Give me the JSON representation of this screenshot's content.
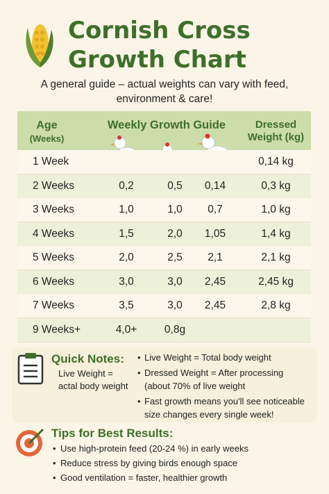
{
  "header": {
    "title_lines": [
      "Cornish Cross",
      "Growth Chart"
    ],
    "subtitle_lines": [
      "A general guide – actual weights can vary with feed,",
      "environment & care!"
    ]
  },
  "table": {
    "headers": {
      "age": [
        "Age",
        "(Weeks)"
      ],
      "growth": "Weekly Growth Guide",
      "dressed": [
        "Dressed",
        "Weight (kg)"
      ]
    },
    "rows": [
      {
        "age": "1 Week",
        "growth": [],
        "dressed": "0,14 kg"
      },
      {
        "age": "2 Weeks",
        "growth": [
          "0,2",
          "0,5",
          "0,14"
        ],
        "dressed": "0,3 kg"
      },
      {
        "age": "3 Weeks",
        "growth": [
          "1,0",
          "1,0",
          "0,7"
        ],
        "dressed": "1,0 kg"
      },
      {
        "age": "4 Weeks",
        "growth": [
          "1,5",
          "2,0",
          "1,05"
        ],
        "dressed": "1,4 kg"
      },
      {
        "age": "5 Weeks",
        "growth": [
          "2,0",
          "2,5",
          "2,1"
        ],
        "dressed": "2,1 kg"
      },
      {
        "age": "6 Weeks",
        "growth": [
          "3,0",
          "3,0",
          "2,45"
        ],
        "dressed": "2,45 kg"
      },
      {
        "age": "7 Weeks",
        "growth": [
          "3,5",
          "3,0",
          "2,45"
        ],
        "dressed": "2,8 kg"
      },
      {
        "age": "9 Weeks+",
        "growth": [
          "4,0+",
          "0,8g"
        ]
      }
    ]
  },
  "quick_notes": {
    "title": "Quick Notes:",
    "side_lines": [
      "Live Weight =",
      "actal body weight"
    ],
    "bullets": [
      [
        "Live Weight = Total body weight"
      ],
      [
        "Dressed Weight = After processing",
        "(about 70% of live weight"
      ],
      [
        "Fast growth means you'll see noticeable",
        "size changes every single week!"
      ]
    ]
  },
  "tips": {
    "title": "Tips for Best Results:",
    "bullets": [
      "Use high-protein feed (20-24 %) in early weeks",
      "Reduce stress by giving birds enough space",
      "Good ventilation = faster, healthier growth"
    ]
  }
}
